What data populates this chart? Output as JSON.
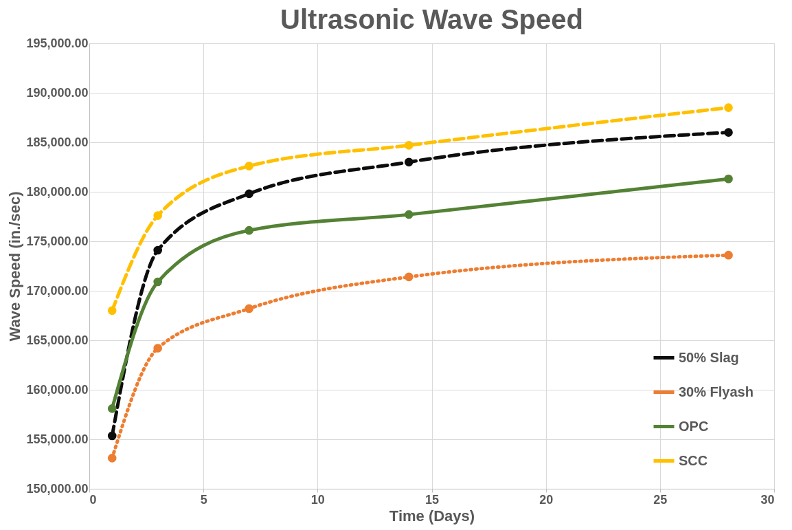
{
  "chart_data": {
    "type": "line",
    "title": "Ultrasonic Wave Speed",
    "xlabel": "Time (Days)",
    "ylabel": "Wave Speed (in./sec)",
    "x": [
      1,
      3,
      7,
      14,
      28
    ],
    "series": [
      {
        "name": "50% Slag",
        "color": "#0d0d0d",
        "line_style": "dashed",
        "values": [
          155350,
          174100,
          179800,
          183000,
          186000
        ]
      },
      {
        "name": "30% Flyash",
        "color": "#ed7d31",
        "line_style": "dotted",
        "values": [
          153100,
          164200,
          168200,
          171400,
          173600
        ]
      },
      {
        "name": "OPC",
        "color": "#548235",
        "line_style": "solid",
        "values": [
          158100,
          170900,
          176100,
          177700,
          181300
        ]
      },
      {
        "name": "SCC",
        "color": "#ffc000",
        "line_style": "dashed",
        "values": [
          168000,
          177600,
          182600,
          184700,
          188500
        ]
      }
    ],
    "xlim": [
      0,
      30
    ],
    "xticks": [
      0,
      5,
      10,
      15,
      20,
      25,
      30
    ],
    "ylim": [
      150000,
      195000
    ],
    "yticks": [
      {
        "value": 150000,
        "label": "150,000.00"
      },
      {
        "value": 155000,
        "label": "155,000.00"
      },
      {
        "value": 160000,
        "label": "160,000.00"
      },
      {
        "value": 165000,
        "label": "165,000.00"
      },
      {
        "value": 170000,
        "label": "170,000.00"
      },
      {
        "value": 175000,
        "label": "175,000.00"
      },
      {
        "value": 180000,
        "label": "180,000.00"
      },
      {
        "value": 185000,
        "label": "185,000.00"
      },
      {
        "value": 190000,
        "label": "190,000.00"
      },
      {
        "value": 195000,
        "label": "195,000.00"
      }
    ],
    "grid": true,
    "legend": "bottom right",
    "marker": "circle"
  }
}
